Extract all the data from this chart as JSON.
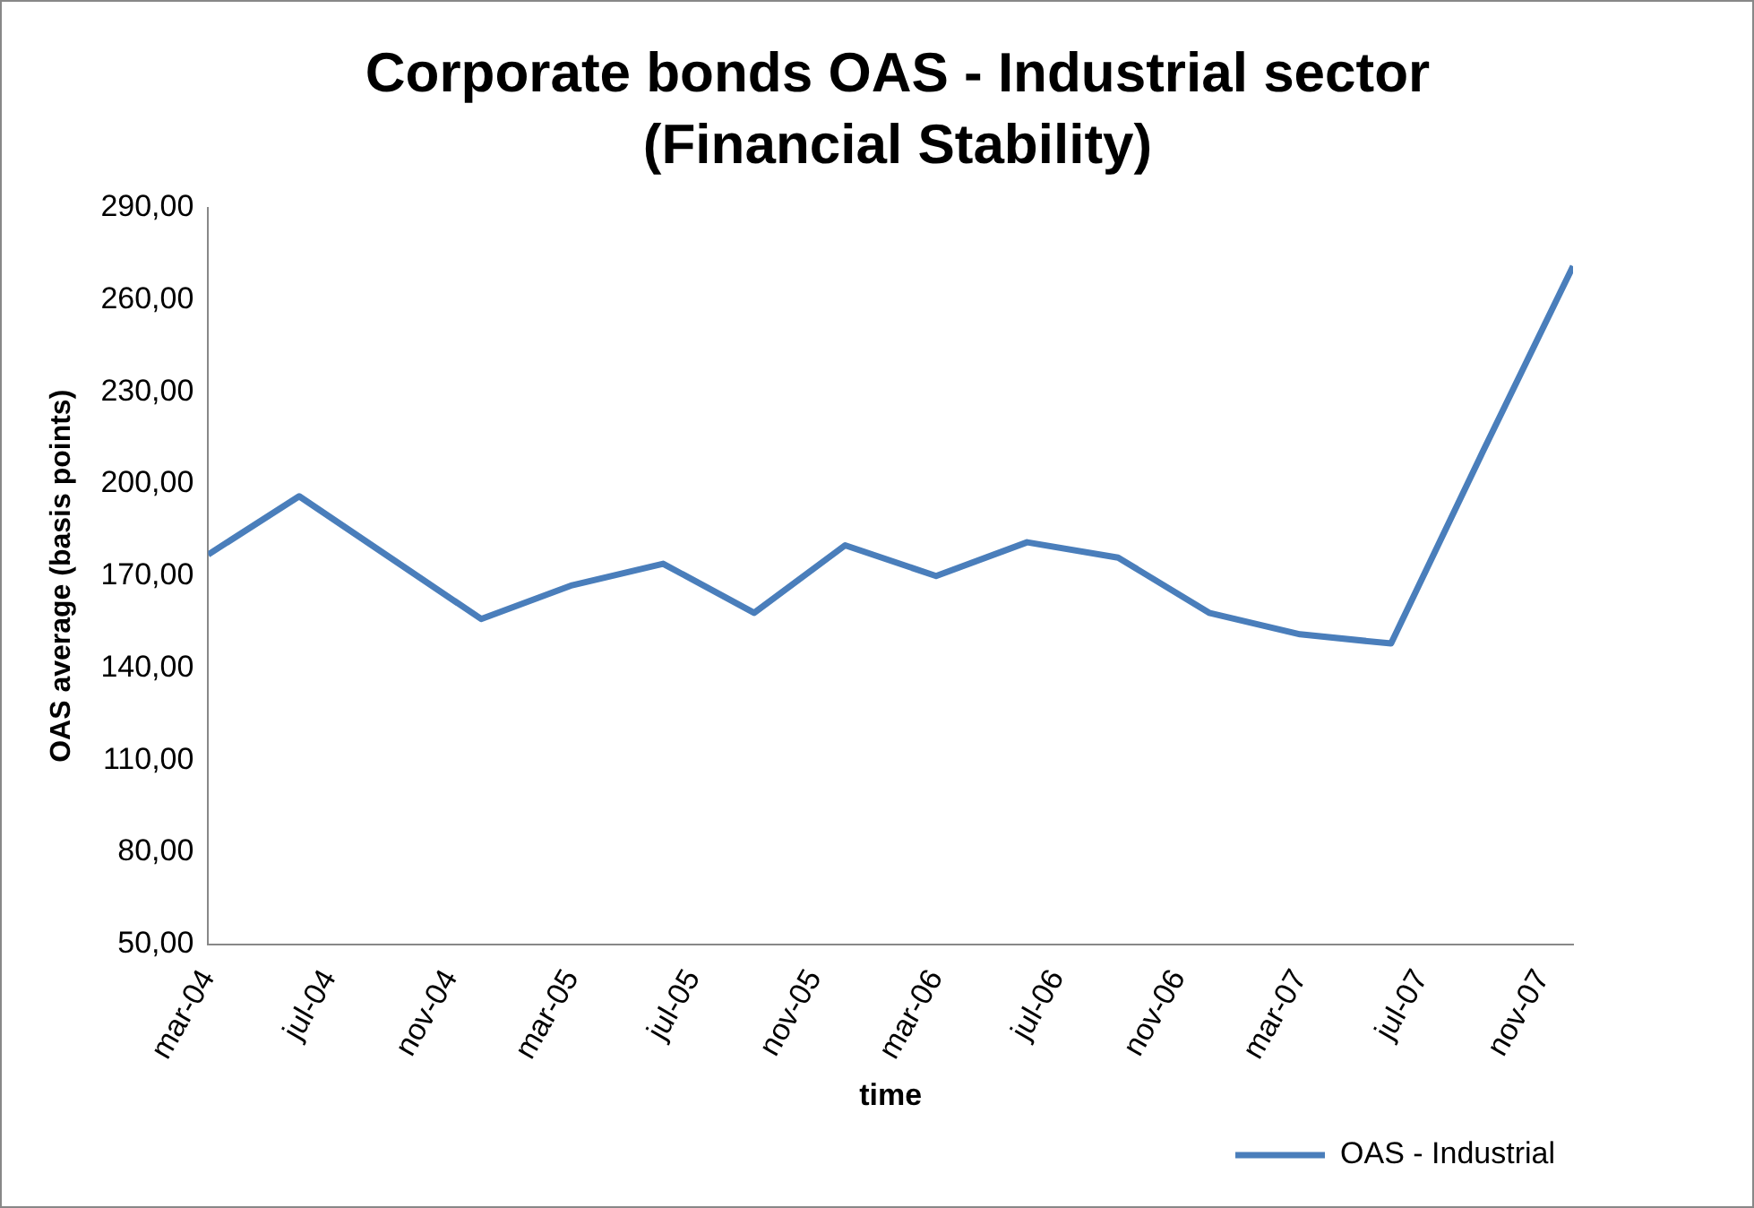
{
  "chart_data": {
    "type": "line",
    "title": "Corporate bonds OAS - Industrial sector (Financial Stability)",
    "xlabel": "time",
    "ylabel": "OAS average (basis points)",
    "x": [
      "2004-03",
      "2004-06",
      "2004-09",
      "2004-12",
      "2005-03",
      "2005-06",
      "2005-09",
      "2005-12",
      "2006-03",
      "2006-06",
      "2006-09",
      "2006-12",
      "2007-03",
      "2007-06",
      "2007-09",
      "2007-12"
    ],
    "series": [
      {
        "name": "OAS - Industrial",
        "color": "#4a7ebb",
        "values": [
          177,
          196,
          176,
          156,
          167,
          174,
          158,
          180,
          170,
          181,
          176,
          158,
          151,
          148,
          210,
          271
        ]
      }
    ],
    "xlim": [
      "2004-03",
      "2007-12"
    ],
    "xticks": [
      {
        "value": "2004-03",
        "label": "mar-04"
      },
      {
        "value": "2004-07",
        "label": "jul-04"
      },
      {
        "value": "2004-11",
        "label": "nov-04"
      },
      {
        "value": "2005-03",
        "label": "mar-05"
      },
      {
        "value": "2005-07",
        "label": "jul-05"
      },
      {
        "value": "2005-11",
        "label": "nov-05"
      },
      {
        "value": "2006-03",
        "label": "mar-06"
      },
      {
        "value": "2006-07",
        "label": "jul-06"
      },
      {
        "value": "2006-11",
        "label": "nov-06"
      },
      {
        "value": "2007-03",
        "label": "mar-07"
      },
      {
        "value": "2007-07",
        "label": "jul-07"
      },
      {
        "value": "2007-11",
        "label": "nov-07"
      }
    ],
    "ylim": [
      50,
      290
    ],
    "yticks": [
      {
        "value": 50,
        "label": "50,00"
      },
      {
        "value": 80,
        "label": "80,00"
      },
      {
        "value": 110,
        "label": "110,00"
      },
      {
        "value": 140,
        "label": "140,00"
      },
      {
        "value": 170,
        "label": "170,00"
      },
      {
        "value": 200,
        "label": "200,00"
      },
      {
        "value": 230,
        "label": "230,00"
      },
      {
        "value": 260,
        "label": "260,00"
      },
      {
        "value": 290,
        "label": "290,00"
      }
    ],
    "grid": false,
    "legend": "bottom right",
    "marker": "none",
    "line_style": "solid"
  }
}
